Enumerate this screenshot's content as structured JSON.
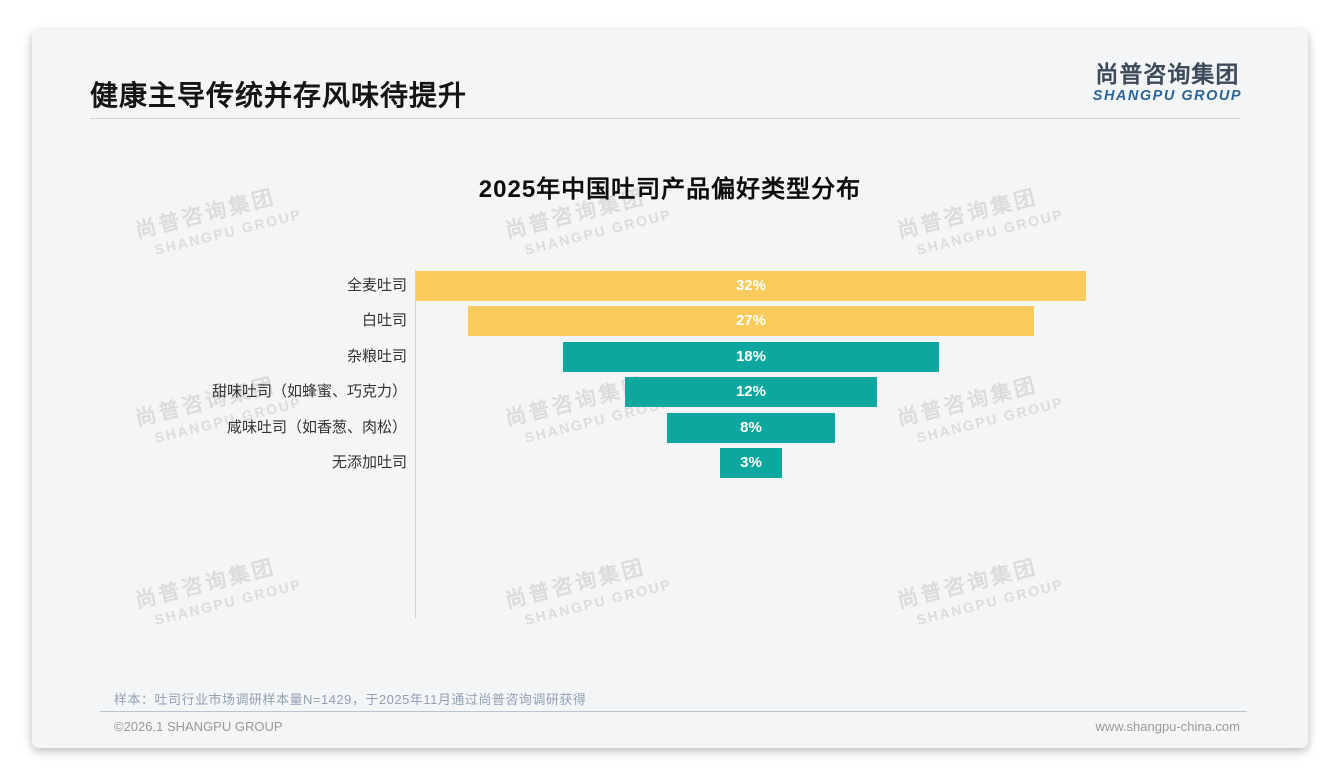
{
  "slide": {
    "title": "健康主导传统并存风味待提升",
    "sample_note": "样本：吐司行业市场调研样本量N=1429，于2025年11月通过尚普咨询调研获得",
    "footer_left": "©2026.1 SHANGPU GROUP",
    "footer_right": "www.shangpu-china.com"
  },
  "logo": {
    "cn": "尚普咨询集团",
    "en": "SHANGPU GROUP"
  },
  "watermark": {
    "cn": "尚普咨询集团",
    "en": "SHANGPU GROUP"
  },
  "colors": {
    "bar_yellow": "#F9CB5D",
    "bar_teal": "#0EA79F",
    "bar_value_text": "#FFFFFF",
    "logo_cn": "#3D4A5A",
    "logo_en": "#2E6496",
    "note_text": "#93A0B4",
    "footer_text": "#9A9A9A",
    "slide_background": "#F4F5F6"
  },
  "chart_data": {
    "type": "bar",
    "variant": "horizontal-centered-funnel",
    "title": "2025年中国吐司产品偏好类型分布",
    "categories": [
      "全麦吐司",
      "白吐司",
      "杂粮吐司",
      "甜味吐司（如蜂蜜、巧克力）",
      "咸味吐司（如香葱、肉松）",
      "无添加吐司"
    ],
    "values": [
      32,
      27,
      18,
      12,
      8,
      3
    ],
    "value_labels": [
      "32%",
      "27%",
      "18%",
      "12%",
      "8%",
      "3%"
    ],
    "series_colors": [
      "#F9CB5D",
      "#F9CB5D",
      "#0EA79F",
      "#0EA79F",
      "#0EA79F",
      "#0EA79F"
    ],
    "unit": "percent",
    "xlim": [
      0,
      32
    ],
    "grid": false,
    "legend": false,
    "ylabel": "",
    "xlabel": ""
  }
}
